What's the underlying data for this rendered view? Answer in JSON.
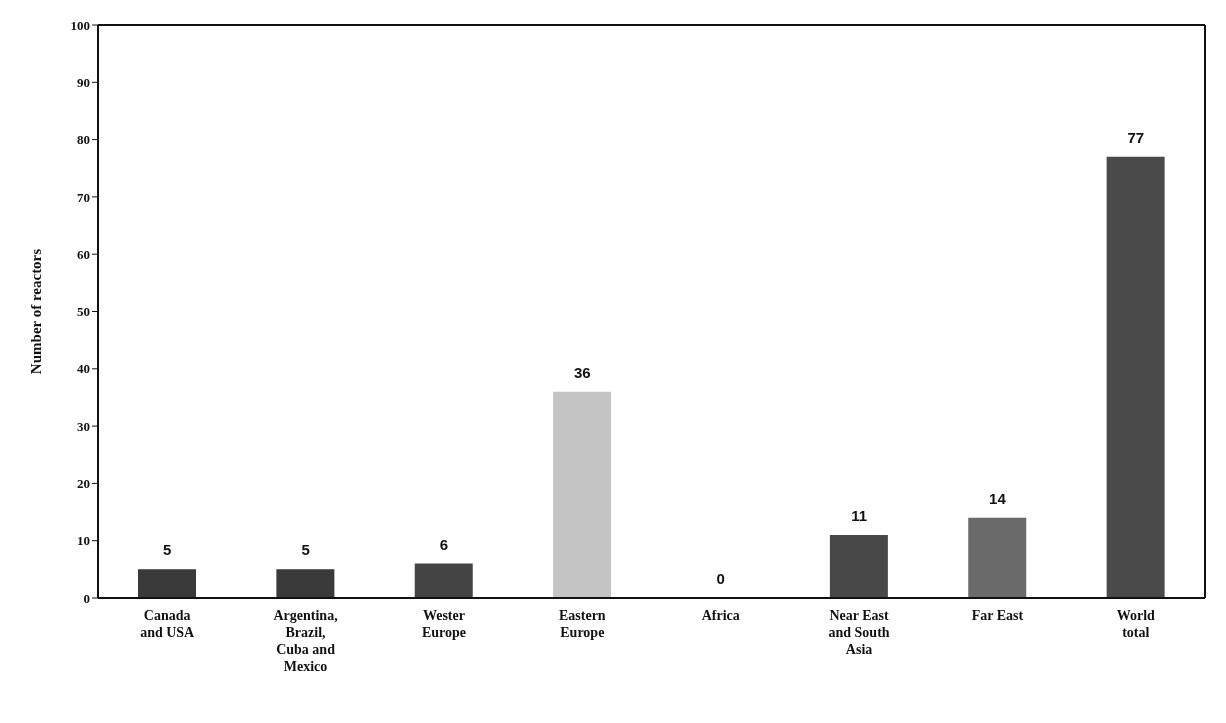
{
  "chart_data": {
    "type": "bar",
    "ylabel": "Number of reactors",
    "categories": [
      "Canada and USA",
      "Argentina, Brazil, Cuba and Mexico",
      "Wester Europe",
      "Eastern Europe",
      "Africa",
      "Near East and South Asia",
      "Far East",
      "World total"
    ],
    "values": [
      5,
      5,
      6,
      36,
      0,
      11,
      14,
      77
    ],
    "colors": [
      "#3a3a3a",
      "#3a3a3a",
      "#444444",
      "#c4c4c4",
      "#3a3a3a",
      "#484848",
      "#6a6a6a",
      "#4a4a4a"
    ],
    "ylim": [
      0,
      100
    ],
    "yticks": [
      0,
      10,
      20,
      30,
      40,
      50,
      60,
      70,
      80,
      90,
      100
    ],
    "data_labels": true,
    "grid": false
  }
}
